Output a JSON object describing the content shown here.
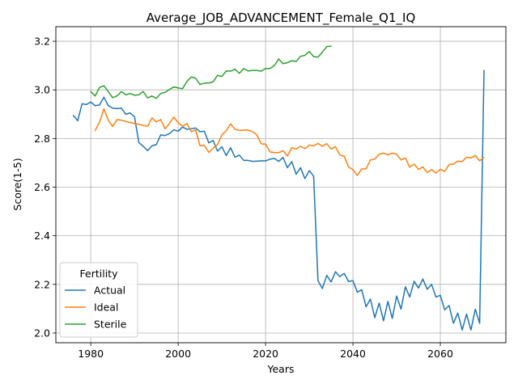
{
  "chart_data": {
    "type": "line",
    "title": "Average_JOB_ADVANCEMENT_Female_Q1_IQ",
    "xlabel": "Years",
    "ylabel": "Score(1-5)",
    "xlim": [
      1972,
      2075
    ],
    "ylim": [
      1.96,
      3.26
    ],
    "xticks": [
      1980,
      2000,
      2020,
      2040,
      2060
    ],
    "yticks": [
      2.0,
      2.2,
      2.4,
      2.6,
      2.8,
      3.0,
      3.2
    ],
    "xtick_labels": [
      "1980",
      "2000",
      "2020",
      "2040",
      "2060"
    ],
    "ytick_labels": [
      "2.0",
      "2.2",
      "2.4",
      "2.6",
      "2.8",
      "3.0",
      "3.2"
    ],
    "grid": true,
    "legend": {
      "title": "Fertility",
      "placement": "lower-left"
    },
    "series": [
      {
        "name": "Actual",
        "color": "#1f77b4",
        "x": [
          1976,
          1977,
          1978,
          1979,
          1980,
          1981,
          1982,
          1983,
          1984,
          1985,
          1986,
          1987,
          1988,
          1989,
          1990,
          1991,
          1992,
          1993,
          1994,
          1995,
          1996,
          1997,
          1998,
          1999,
          2000,
          2001,
          2002,
          2003,
          2004,
          2005,
          2006,
          2007,
          2008,
          2009,
          2010,
          2011,
          2012,
          2013,
          2014,
          2015,
          2016,
          2017,
          2018,
          2019,
          2020,
          2021,
          2022,
          2023,
          2024,
          2025,
          2026,
          2027,
          2028,
          2029,
          2030,
          2031,
          2032,
          2033,
          2034,
          2035,
          2036,
          2037,
          2038,
          2039,
          2040,
          2041,
          2042,
          2043,
          2044,
          2045,
          2046,
          2047,
          2048,
          2049,
          2050,
          2051,
          2052,
          2053,
          2054,
          2055,
          2056,
          2057,
          2058,
          2059,
          2060,
          2061,
          2062,
          2063,
          2064,
          2065,
          2066,
          2067,
          2068,
          2069,
          2070
        ],
        "values": [
          2.895,
          2.873,
          2.943,
          2.94,
          2.95,
          2.935,
          2.938,
          2.97,
          2.935,
          2.925,
          2.923,
          2.925,
          2.9,
          2.905,
          2.89,
          2.783,
          2.768,
          2.75,
          2.77,
          2.775,
          2.815,
          2.812,
          2.82,
          2.836,
          2.83,
          2.847,
          2.838,
          2.84,
          2.843,
          2.828,
          2.83,
          2.782,
          2.792,
          2.748,
          2.766,
          2.73,
          2.762,
          2.723,
          2.732,
          2.71,
          2.71,
          2.706,
          2.707,
          2.708,
          2.708,
          2.715,
          2.718,
          2.706,
          2.722,
          2.68,
          2.705,
          2.653,
          2.68,
          2.635,
          2.668,
          2.645,
          2.215,
          2.183,
          2.237,
          2.21,
          2.252,
          2.232,
          2.245,
          2.212,
          2.215,
          2.168,
          2.178,
          2.108,
          2.14,
          2.063,
          2.123,
          2.05,
          2.13,
          2.06,
          2.152,
          2.098,
          2.19,
          2.148,
          2.213,
          2.185,
          2.222,
          2.18,
          2.2,
          2.148,
          2.155,
          2.095,
          2.113,
          2.04,
          2.082,
          2.012,
          2.078,
          2.012,
          2.098,
          2.04,
          3.08
        ]
      },
      {
        "name": "Ideal",
        "color": "#ff7f0e",
        "x": [
          1981,
          1982,
          1983,
          1984,
          1985,
          1986,
          1987,
          1988,
          1989,
          1990,
          1991,
          1992,
          1993,
          1994,
          1995,
          1996,
          1997,
          1998,
          1999,
          2000,
          2001,
          2002,
          2003,
          2004,
          2005,
          2006,
          2007,
          2008,
          2009,
          2010,
          2011,
          2012,
          2013,
          2014,
          2015,
          2016,
          2017,
          2018,
          2019,
          2020,
          2021,
          2022,
          2023,
          2024,
          2025,
          2026,
          2027,
          2028,
          2029,
          2030,
          2031,
          2032,
          2033,
          2034,
          2035,
          2036,
          2037,
          2038,
          2039,
          2040,
          2041,
          2042,
          2043,
          2044,
          2045,
          2046,
          2047,
          2048,
          2049,
          2050,
          2051,
          2052,
          2053,
          2054,
          2055,
          2056,
          2057,
          2058,
          2059,
          2060,
          2061,
          2062,
          2063,
          2064,
          2065,
          2066,
          2067,
          2068,
          2069,
          2070
        ],
        "values": [
          2.833,
          2.867,
          2.922,
          2.875,
          2.85,
          2.878,
          2.875,
          2.87,
          2.866,
          2.862,
          2.858,
          2.854,
          2.85,
          2.885,
          2.868,
          2.878,
          2.84,
          2.862,
          2.888,
          2.865,
          2.85,
          2.862,
          2.828,
          2.835,
          2.77,
          2.772,
          2.743,
          2.76,
          2.775,
          2.815,
          2.832,
          2.86,
          2.838,
          2.833,
          2.835,
          2.835,
          2.828,
          2.815,
          2.778,
          2.777,
          2.745,
          2.742,
          2.742,
          2.75,
          2.728,
          2.762,
          2.757,
          2.768,
          2.758,
          2.773,
          2.77,
          2.78,
          2.768,
          2.779,
          2.757,
          2.766,
          2.732,
          2.727,
          2.683,
          2.672,
          2.648,
          2.675,
          2.675,
          2.712,
          2.715,
          2.735,
          2.74,
          2.733,
          2.74,
          2.735,
          2.712,
          2.72,
          2.682,
          2.695,
          2.673,
          2.683,
          2.66,
          2.672,
          2.658,
          2.673,
          2.665,
          2.693,
          2.695,
          2.707,
          2.705,
          2.723,
          2.72,
          2.73,
          2.708,
          2.722
        ]
      },
      {
        "name": "Sterile",
        "color": "#2ca02c",
        "x": [
          1980,
          1981,
          1982,
          1983,
          1984,
          1985,
          1986,
          1987,
          1988,
          1989,
          1990,
          1991,
          1992,
          1993,
          1994,
          1995,
          1996,
          1997,
          1998,
          1999,
          2000,
          2001,
          2002,
          2003,
          2004,
          2005,
          2006,
          2007,
          2008,
          2009,
          2010,
          2011,
          2012,
          2013,
          2014,
          2015,
          2016,
          2017,
          2018,
          2019,
          2020,
          2021,
          2022,
          2023,
          2024,
          2025,
          2026,
          2027,
          2028,
          2029,
          2030,
          2031,
          2032,
          2033,
          2034,
          2035
        ],
        "values": [
          2.993,
          2.975,
          3.01,
          3.017,
          2.993,
          2.968,
          2.975,
          2.993,
          2.98,
          2.985,
          2.978,
          2.98,
          2.993,
          2.967,
          2.975,
          2.965,
          2.985,
          2.99,
          3.002,
          3.012,
          3.008,
          3.005,
          3.035,
          3.053,
          3.048,
          3.022,
          3.028,
          3.028,
          3.033,
          3.06,
          3.055,
          3.078,
          3.077,
          3.085,
          3.068,
          3.088,
          3.078,
          3.08,
          3.08,
          3.077,
          3.088,
          3.088,
          3.1,
          3.127,
          3.108,
          3.112,
          3.12,
          3.117,
          3.138,
          3.142,
          3.158,
          3.137,
          3.135,
          3.155,
          3.178,
          3.18
        ]
      }
    ]
  }
}
